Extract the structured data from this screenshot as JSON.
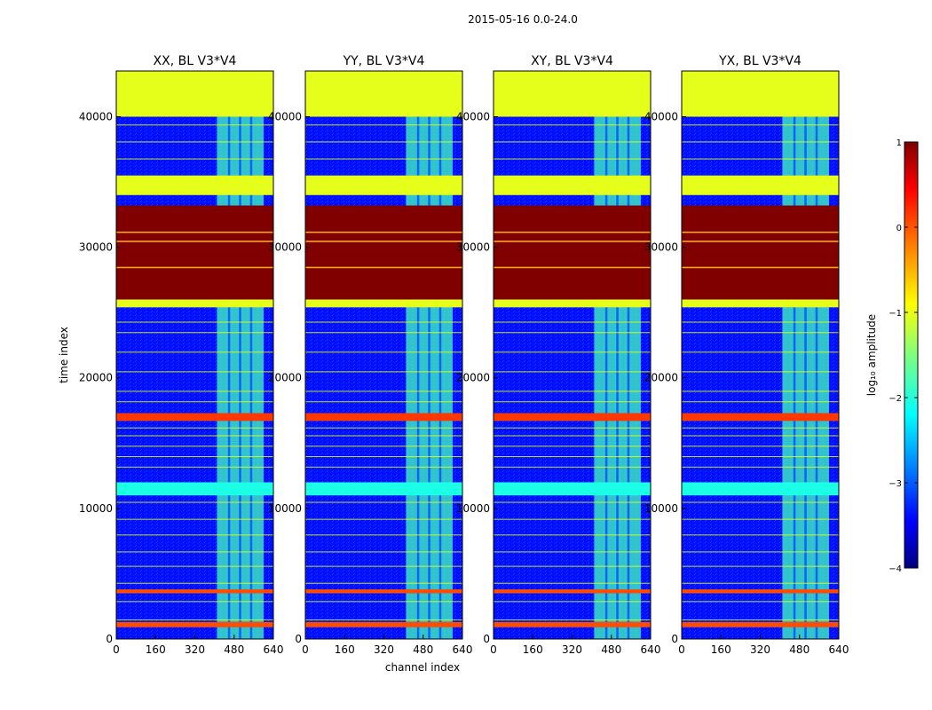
{
  "figure": {
    "suptitle": "2015-05-16 0.0-24.0",
    "xlabel": "channel index",
    "ylabel": "time index"
  },
  "chart_data": {
    "type": "heatmap",
    "colormap": "jet",
    "x_range": [
      0,
      640
    ],
    "y_range": [
      0,
      43500
    ],
    "x_ticks": [
      0,
      160,
      320,
      480,
      640
    ],
    "y_ticks": [
      0,
      10000,
      20000,
      30000,
      40000
    ],
    "panels": [
      {
        "title": "XX, BL V3*V4",
        "xlabel": "",
        "ylabel": "time index"
      },
      {
        "title": "YY, BL V3*V4",
        "xlabel": "channel index",
        "ylabel": ""
      },
      {
        "title": "XY, BL V3*V4",
        "xlabel": "",
        "ylabel": ""
      },
      {
        "title": "YX, BL V3*V4",
        "xlabel": "",
        "ylabel": ""
      }
    ],
    "background_level": -3.3,
    "rfi_channel_band": {
      "x": [
        410,
        600
      ],
      "level": -1.8
    },
    "time_bands": [
      {
        "y": [
          40000,
          43500
        ],
        "level": -1.0
      },
      {
        "y": [
          34000,
          35500
        ],
        "level": -1.0
      },
      {
        "y": [
          26000,
          33200
        ],
        "level": 1.0
      },
      {
        "y": [
          25400,
          26000
        ],
        "level": -1.0
      },
      {
        "y": [
          16700,
          17300
        ],
        "level": 0.1
      },
      {
        "y": [
          11000,
          12000
        ],
        "level": -2.0
      },
      {
        "y": [
          3500,
          3800
        ],
        "level": 0.0
      },
      {
        "y": [
          900,
          1300
        ],
        "level": 0.0
      }
    ],
    "colorbar": {
      "label": "log₁₀ amplitude",
      "range": [
        -4,
        1
      ],
      "ticks": [
        1,
        0,
        -1,
        -2,
        -3,
        -4
      ],
      "tick_labels": [
        "1",
        "0",
        "−1",
        "−2",
        "−3",
        "−4"
      ]
    }
  }
}
